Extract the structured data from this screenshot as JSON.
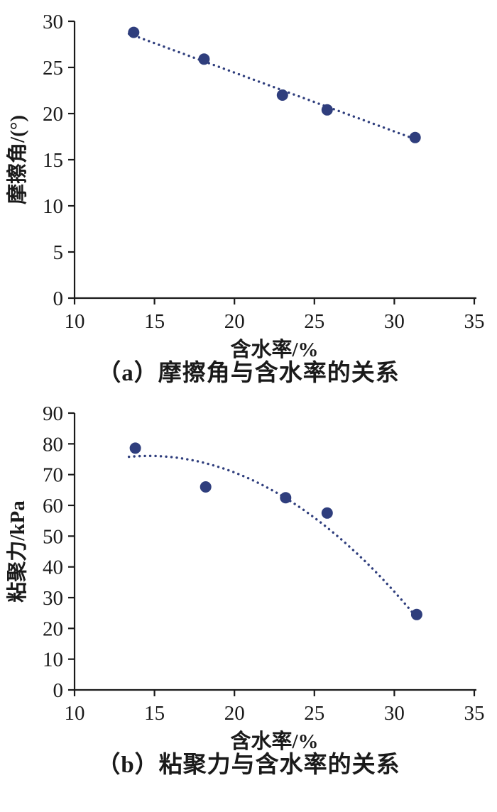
{
  "accent_color": "#2f3e7d",
  "chart_data": [
    {
      "type": "scatter",
      "panel": "a",
      "title": "（a）摩擦角与含水率的关系",
      "xlabel": "含水率/%",
      "ylabel": "摩擦角/(°)",
      "xlim": [
        10,
        35
      ],
      "ylim": [
        0,
        30
      ],
      "xticks": [
        10,
        15,
        20,
        25,
        30,
        35
      ],
      "yticks": [
        0,
        5,
        10,
        15,
        20,
        25,
        30
      ],
      "points": [
        [
          13.7,
          28.8
        ],
        [
          18.1,
          25.9
        ],
        [
          23.0,
          22.0
        ],
        [
          25.8,
          20.4
        ],
        [
          31.3,
          17.4
        ]
      ],
      "trend": {
        "kind": "polynomial",
        "coeffs": [
          37.2,
          -0.638,
          0
        ],
        "x_start": 13.4,
        "x_end": 31.5,
        "style": "dotted"
      },
      "grid": false,
      "legend": null,
      "marker_color": "#2f3e7d"
    },
    {
      "type": "scatter",
      "panel": "b",
      "title": "（b）粘聚力与含水率的关系",
      "xlabel": "含水率/%",
      "ylabel": "粘聚力/kPa",
      "xlim": [
        10,
        35
      ],
      "ylim": [
        0,
        90
      ],
      "xticks": [
        10,
        15,
        20,
        25,
        30,
        35
      ],
      "yticks": [
        0,
        10,
        20,
        30,
        40,
        50,
        60,
        70,
        80,
        90
      ],
      "points": [
        [
          13.8,
          78.6
        ],
        [
          18.2,
          66.0
        ],
        [
          23.2,
          62.5
        ],
        [
          25.8,
          57.5
        ],
        [
          31.4,
          24.5
        ]
      ],
      "trend": {
        "kind": "polynomial",
        "coeffs": [
          35.98,
          5.478,
          -0.1871
        ],
        "x_start": 13.4,
        "x_end": 31.4,
        "style": "dotted"
      },
      "grid": false,
      "legend": null,
      "marker_color": "#2f3e7d"
    }
  ]
}
